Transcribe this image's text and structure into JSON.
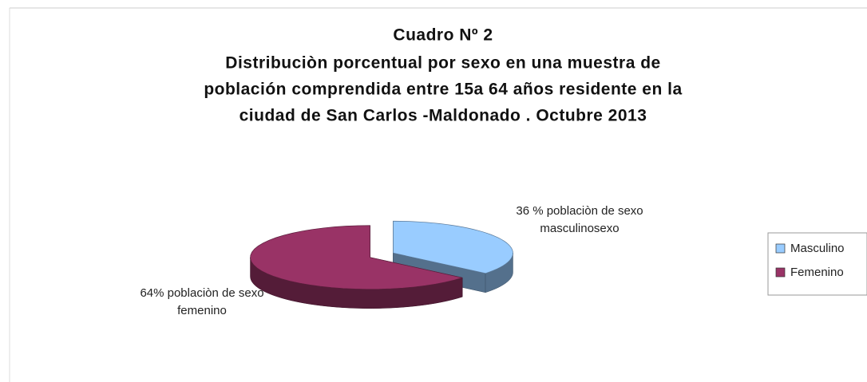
{
  "chart_data": {
    "type": "pie3d",
    "title": "Cuadro Nº 2",
    "subtitle": [
      "Distribuciòn porcentual por sexo en una muestra de",
      "población comprendida entre 15a 64 años residente en la",
      "ciudad de San Carlos -Maldonado . Octubre 2013"
    ],
    "categories": [
      "Masculino",
      "Femenino"
    ],
    "values": [
      36,
      64
    ],
    "value_labels": [
      "36 % poblaciòn de sexo masculinosexo",
      "64% poblaciòn de sexo femenino"
    ],
    "colors": [
      "#99ccff",
      "#993366"
    ],
    "legend": "right"
  }
}
